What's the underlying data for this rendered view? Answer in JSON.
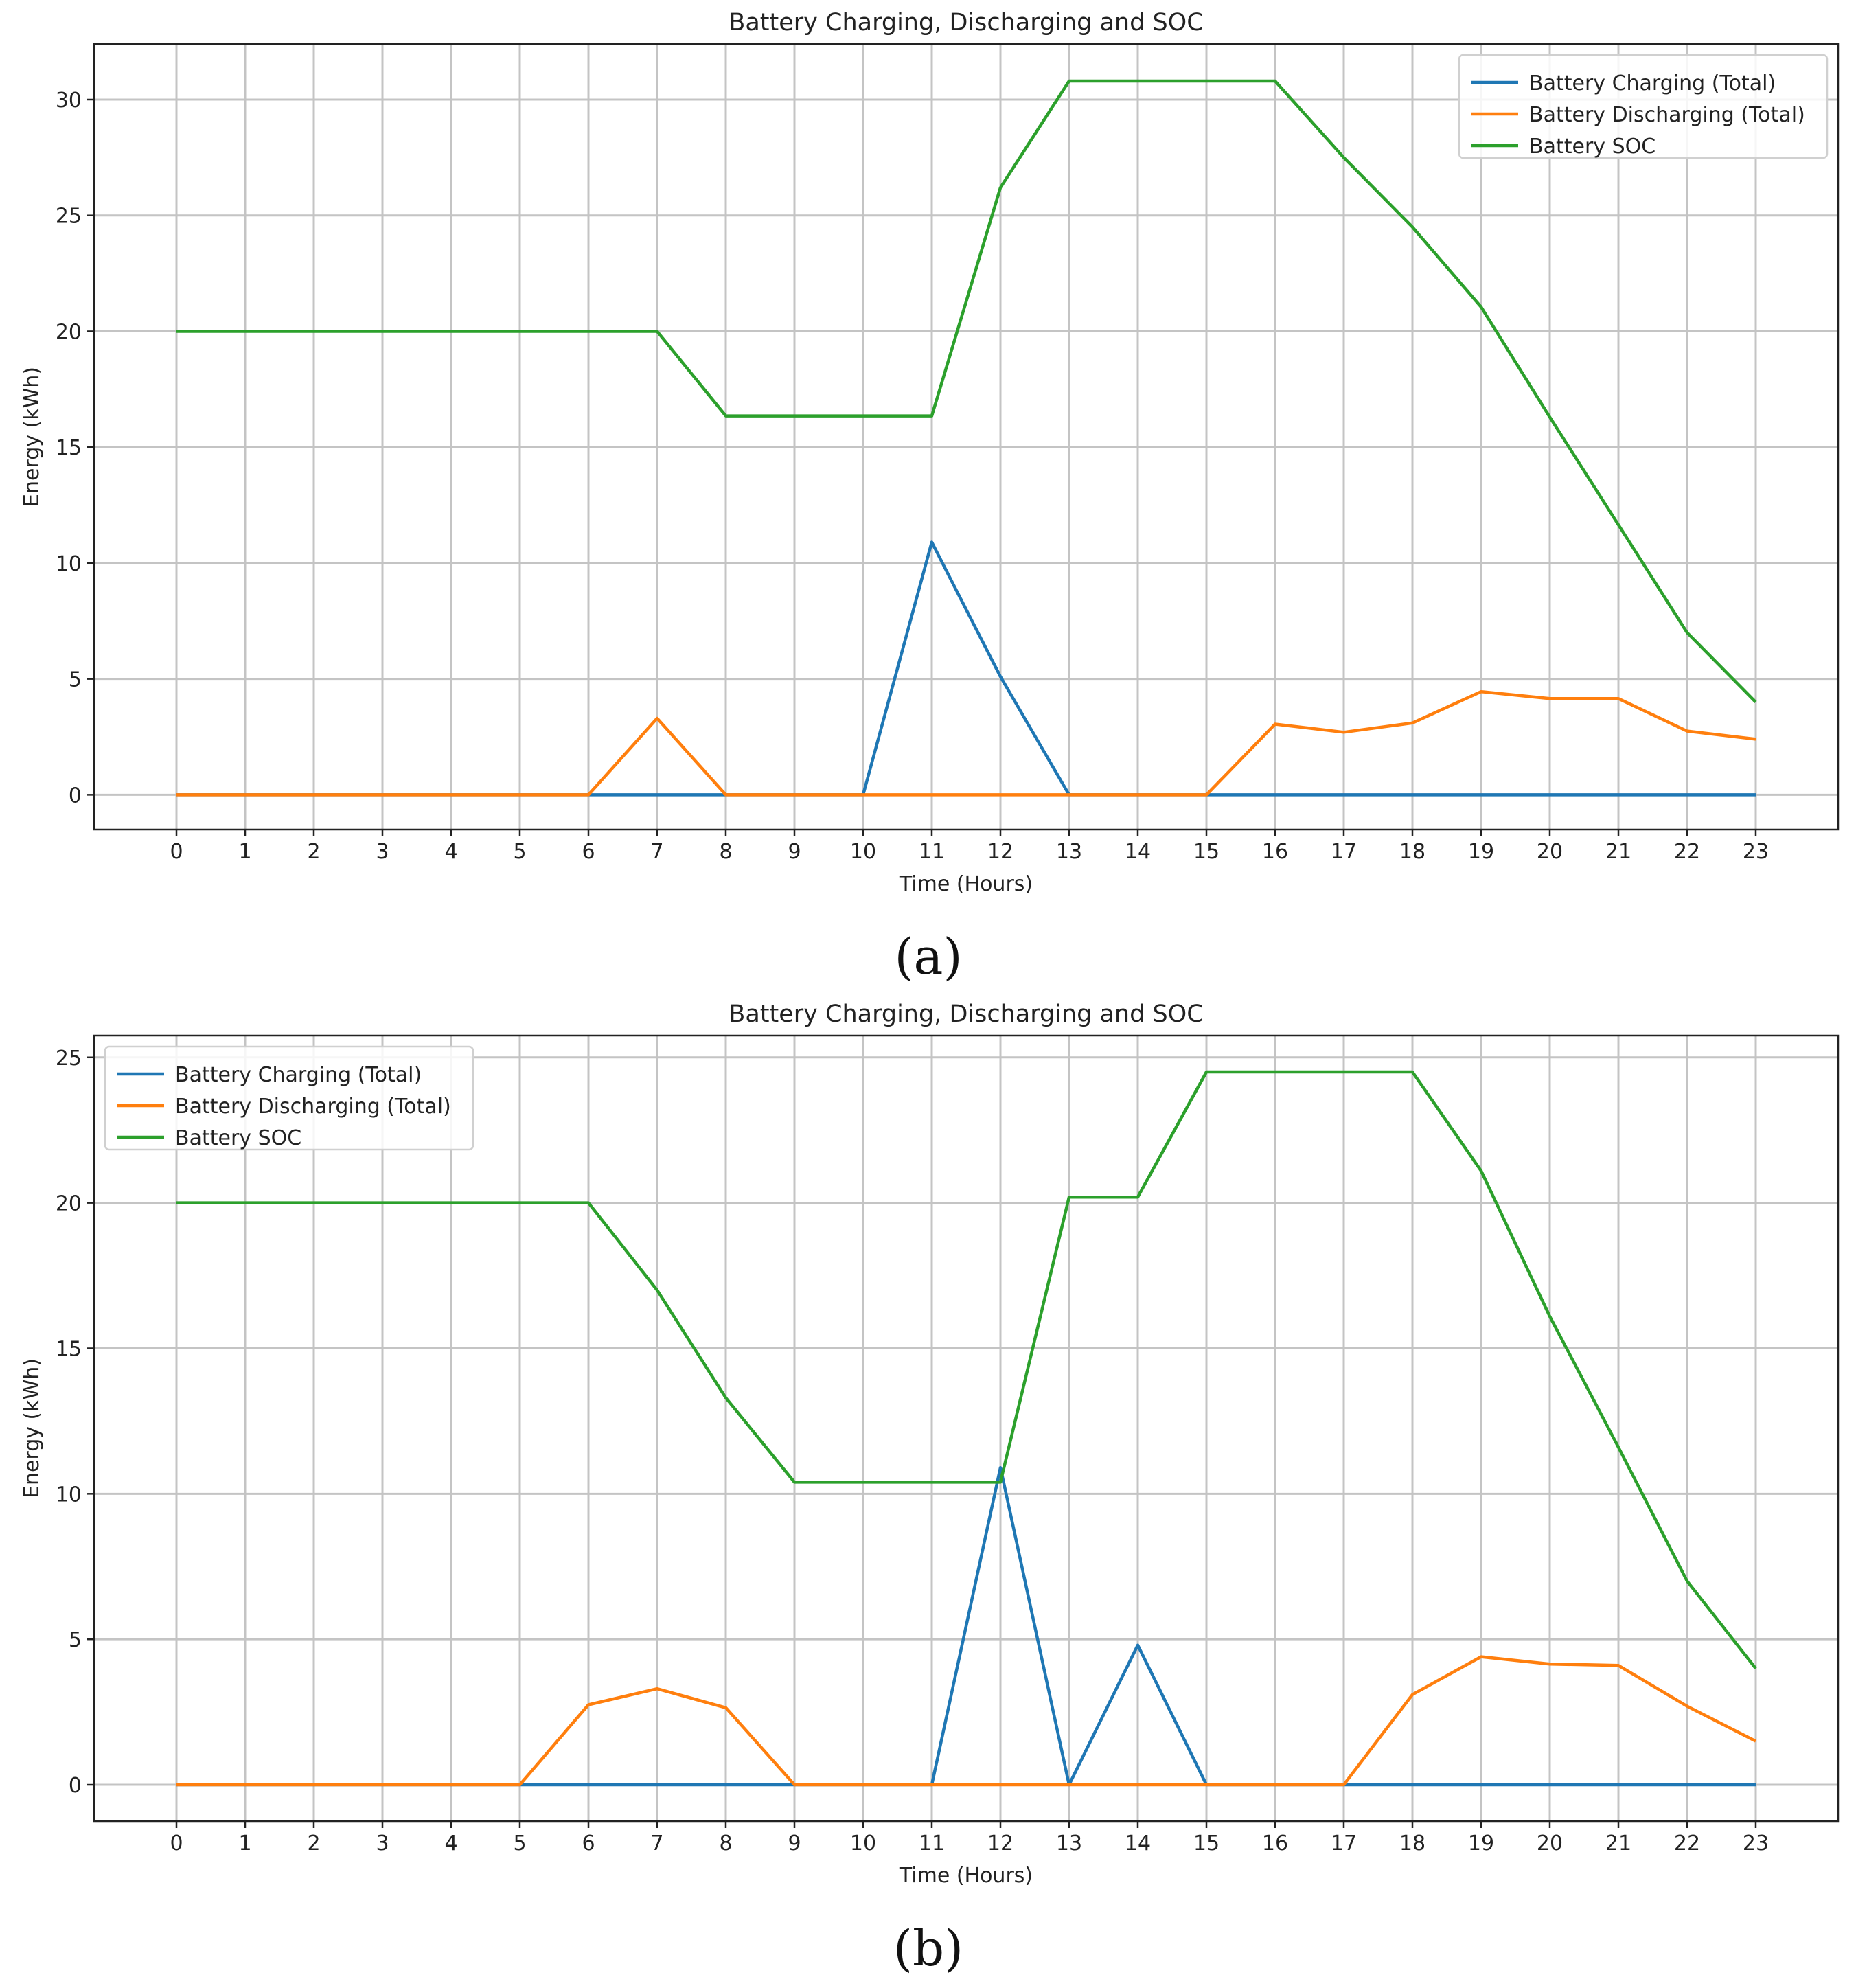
{
  "panel_labels": [
    "(a)",
    "(b)"
  ],
  "chart_data": [
    {
      "type": "line",
      "title": "Battery Charging, Discharging and SOC",
      "xlabel": "Time (Hours)",
      "ylabel": "Energy (kWh)",
      "x": [
        0,
        1,
        2,
        3,
        4,
        5,
        6,
        7,
        8,
        9,
        10,
        11,
        12,
        13,
        14,
        15,
        16,
        17,
        18,
        19,
        20,
        21,
        22,
        23
      ],
      "xticks": [
        "0",
        "1",
        "2",
        "3",
        "4",
        "5",
        "6",
        "7",
        "8",
        "9",
        "10",
        "11",
        "12",
        "13",
        "14",
        "15",
        "16",
        "17",
        "18",
        "19",
        "20",
        "21",
        "22",
        "23"
      ],
      "xlim": [
        -1.2,
        24.2
      ],
      "ylim": [
        -1.5,
        32.4
      ],
      "yticks": [
        0,
        5,
        10,
        15,
        20,
        25,
        30
      ],
      "grid": true,
      "legend_position": "top-right",
      "series": [
        {
          "name": "Battery Charging (Total)",
          "color": "#1f77b4",
          "values": [
            0,
            0,
            0,
            0,
            0,
            0,
            0,
            0,
            0,
            0,
            0,
            10.9,
            5.1,
            0,
            0,
            0,
            0,
            0,
            0,
            0,
            0,
            0,
            0,
            0
          ]
        },
        {
          "name": "Battery Discharging (Total)",
          "color": "#ff7f0e",
          "values": [
            0,
            0,
            0,
            0,
            0,
            0,
            0,
            3.3,
            0,
            0,
            0,
            0,
            0,
            0,
            0,
            0,
            3.05,
            2.7,
            3.1,
            4.45,
            4.15,
            4.15,
            2.75,
            2.4
          ]
        },
        {
          "name": "Battery SOC",
          "color": "#2ca02c",
          "values": [
            20,
            20,
            20,
            20,
            20,
            20,
            20,
            20,
            16.35,
            16.35,
            16.35,
            16.35,
            26.2,
            30.8,
            30.8,
            30.8,
            30.8,
            27.5,
            24.5,
            21.05,
            16.3,
            11.65,
            7,
            4
          ]
        }
      ]
    },
    {
      "type": "line",
      "title": "Battery Charging, Discharging and SOC",
      "xlabel": "Time (Hours)",
      "ylabel": "Energy (kWh)",
      "x": [
        0,
        1,
        2,
        3,
        4,
        5,
        6,
        7,
        8,
        9,
        10,
        11,
        12,
        13,
        14,
        15,
        16,
        17,
        18,
        19,
        20,
        21,
        22,
        23
      ],
      "xticks": [
        "0",
        "1",
        "2",
        "3",
        "4",
        "5",
        "6",
        "7",
        "8",
        "9",
        "10",
        "11",
        "12",
        "13",
        "14",
        "15",
        "16",
        "17",
        "18",
        "19",
        "20",
        "21",
        "22",
        "23"
      ],
      "xlim": [
        -1.2,
        24.2
      ],
      "ylim": [
        -1.25,
        25.75
      ],
      "yticks": [
        0,
        5,
        10,
        15,
        20,
        25
      ],
      "grid": true,
      "legend_position": "top-left",
      "series": [
        {
          "name": "Battery Charging (Total)",
          "color": "#1f77b4",
          "values": [
            0,
            0,
            0,
            0,
            0,
            0,
            0,
            0,
            0,
            0,
            0,
            0,
            10.9,
            0,
            4.8,
            0,
            0,
            0,
            0,
            0,
            0,
            0,
            0,
            0
          ]
        },
        {
          "name": "Battery Discharging (Total)",
          "color": "#ff7f0e",
          "values": [
            0,
            0,
            0,
            0,
            0,
            0,
            2.75,
            3.3,
            2.65,
            0,
            0,
            0,
            0,
            0,
            0,
            0,
            0,
            0,
            3.1,
            4.4,
            4.15,
            4.1,
            2.7,
            1.5
          ]
        },
        {
          "name": "Battery SOC",
          "color": "#2ca02c",
          "values": [
            20,
            20,
            20,
            20,
            20,
            20,
            20,
            17,
            13.3,
            10.4,
            10.4,
            10.4,
            10.4,
            20.2,
            20.2,
            24.5,
            24.5,
            24.5,
            24.5,
            21.1,
            16.1,
            11.6,
            7,
            4
          ]
        }
      ]
    }
  ]
}
